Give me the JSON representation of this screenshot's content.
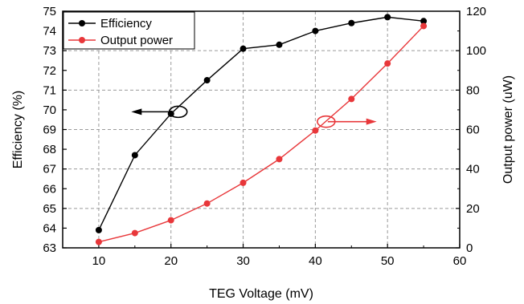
{
  "chart_data": {
    "type": "line",
    "title": "",
    "xlabel": "TEG Voltage (mV)",
    "ylabel_left": "Efficiency (%)",
    "ylabel_right": "Output power (uW)",
    "xlim": [
      5,
      60
    ],
    "xticks": [
      10,
      20,
      30,
      40,
      50,
      60
    ],
    "ylim_left": [
      63,
      75
    ],
    "yticks_left": [
      63,
      64,
      65,
      66,
      67,
      68,
      69,
      70,
      71,
      72,
      73,
      74,
      75
    ],
    "ylim_right": [
      0,
      120
    ],
    "yticks_right": [
      0,
      20,
      40,
      60,
      80,
      100,
      120
    ],
    "grid": true,
    "legend_position": "top-left",
    "x": [
      10,
      15,
      20,
      25,
      30,
      35,
      40,
      45,
      50,
      55
    ],
    "series": [
      {
        "name": "Efficiency",
        "axis": "left",
        "color": "#000000",
        "values": [
          63.9,
          67.7,
          69.8,
          71.5,
          73.1,
          73.3,
          74.0,
          74.4,
          74.7,
          74.5
        ]
      },
      {
        "name": "Output power",
        "axis": "right",
        "color": "#e8373a",
        "values": [
          3,
          7.5,
          14,
          22.5,
          33,
          45,
          59.5,
          75.5,
          93.5,
          112.5
        ]
      }
    ],
    "annotations": [
      {
        "type": "ellipse-arrow",
        "series": "Efficiency",
        "at_x": 21,
        "at_y_left": 69.9,
        "arrow_direction": "left",
        "arrow_to_x": 14.5
      },
      {
        "type": "ellipse-arrow",
        "series": "Output power",
        "at_x": 41.5,
        "at_y_right": 64,
        "arrow_direction": "right",
        "arrow_to_x": 48.5
      }
    ]
  }
}
